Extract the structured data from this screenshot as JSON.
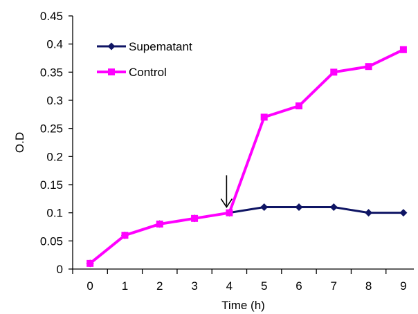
{
  "chart_data": {
    "type": "line",
    "title": "",
    "xlabel": "Time (h)",
    "ylabel": "O.D",
    "x": [
      0,
      1,
      2,
      3,
      4,
      5,
      6,
      7,
      8,
      9
    ],
    "xlim": [
      -0.5,
      9.3
    ],
    "ylim": [
      0,
      0.45
    ],
    "yticks": [
      0,
      0.05,
      0.1,
      0.15,
      0.2,
      0.25,
      0.3,
      0.35,
      0.4,
      0.45
    ],
    "ytick_labels": [
      "0",
      "0.05",
      "0.1",
      "0.15",
      "0.2",
      "0.25",
      "0.3",
      "0.35",
      "0.4",
      "0.45"
    ],
    "xtick_labels": [
      "0",
      "1",
      "2",
      "3",
      "4",
      "5",
      "6",
      "7",
      "8",
      "9"
    ],
    "grid": false,
    "legend_position": "top-left",
    "series": [
      {
        "name": "Supematant",
        "color": "#0f1564",
        "marker": "diamond",
        "values": [
          0.01,
          0.06,
          0.08,
          0.09,
          0.1,
          0.11,
          0.11,
          0.11,
          0.1,
          0.1
        ]
      },
      {
        "name": "Control",
        "color": "#ff00ff",
        "marker": "square",
        "values": [
          0.01,
          0.06,
          0.08,
          0.09,
          0.1,
          0.27,
          0.29,
          0.35,
          0.36,
          0.39
        ]
      }
    ],
    "annotations": [
      {
        "type": "arrow",
        "direction": "down",
        "x": 4,
        "y": 0.12
      }
    ]
  }
}
